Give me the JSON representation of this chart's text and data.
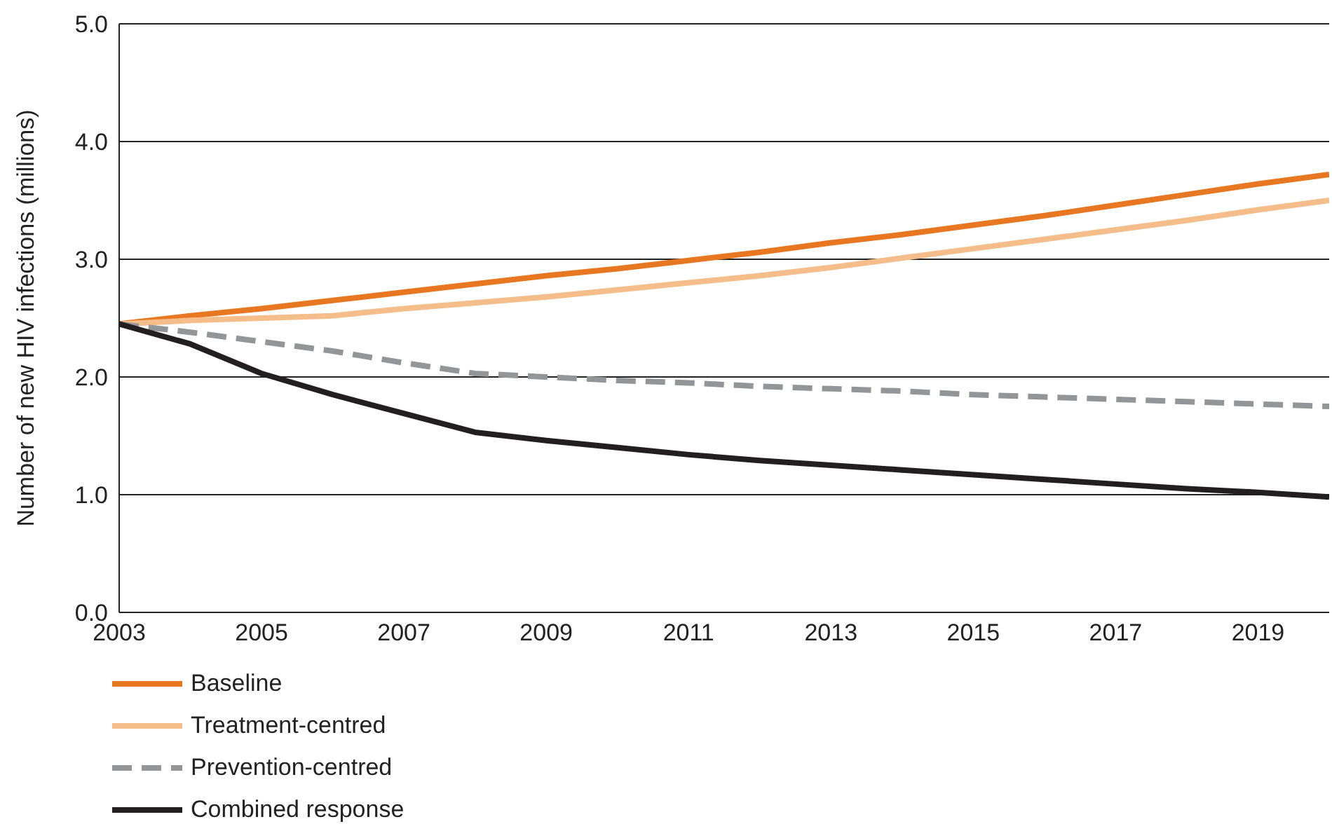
{
  "chart_data": {
    "type": "line",
    "ylabel": "Number of new HIV infections (millions)",
    "x": [
      2003,
      2004,
      2005,
      2006,
      2007,
      2008,
      2009,
      2010,
      2011,
      2012,
      2013,
      2014,
      2015,
      2016,
      2017,
      2018,
      2019,
      2020
    ],
    "series": [
      {
        "name": "Baseline",
        "color": "#e87722",
        "line_style": "solid",
        "values": [
          2.45,
          2.52,
          2.58,
          2.65,
          2.72,
          2.79,
          2.86,
          2.92,
          2.99,
          3.06,
          3.14,
          3.21,
          3.29,
          3.37,
          3.46,
          3.55,
          3.64,
          3.72
        ]
      },
      {
        "name": "Treatment-centred",
        "color": "#f5bd8a",
        "line_style": "solid",
        "values": [
          2.45,
          2.48,
          2.5,
          2.52,
          2.58,
          2.63,
          2.68,
          2.74,
          2.8,
          2.86,
          2.93,
          3.01,
          3.09,
          3.17,
          3.25,
          3.33,
          3.42,
          3.5
        ]
      },
      {
        "name": "Prevention-centred",
        "color": "#939598",
        "line_style": "dashed",
        "values": [
          2.45,
          2.38,
          2.3,
          2.22,
          2.12,
          2.03,
          2.0,
          1.97,
          1.95,
          1.92,
          1.9,
          1.88,
          1.85,
          1.83,
          1.81,
          1.79,
          1.77,
          1.75
        ]
      },
      {
        "name": "Combined response",
        "color": "#231f20",
        "line_style": "solid",
        "values": [
          2.45,
          2.28,
          2.03,
          1.85,
          1.69,
          1.53,
          1.46,
          1.4,
          1.34,
          1.29,
          1.25,
          1.21,
          1.17,
          1.13,
          1.09,
          1.05,
          1.02,
          0.98
        ]
      }
    ],
    "xlim": [
      2003,
      2020
    ],
    "xticks": [
      2003,
      2005,
      2007,
      2009,
      2011,
      2013,
      2015,
      2017,
      2019
    ],
    "ylim": [
      0,
      5
    ],
    "yticks": [
      {
        "value": 0,
        "label": "0.0"
      },
      {
        "value": 1,
        "label": "1.0"
      },
      {
        "value": 2,
        "label": "2.0"
      },
      {
        "value": 3,
        "label": "3.0"
      },
      {
        "value": 4,
        "label": "4.0"
      },
      {
        "value": 5,
        "label": "5.0"
      }
    ],
    "grid": "y",
    "legend": "bottom left",
    "marker": "none"
  }
}
